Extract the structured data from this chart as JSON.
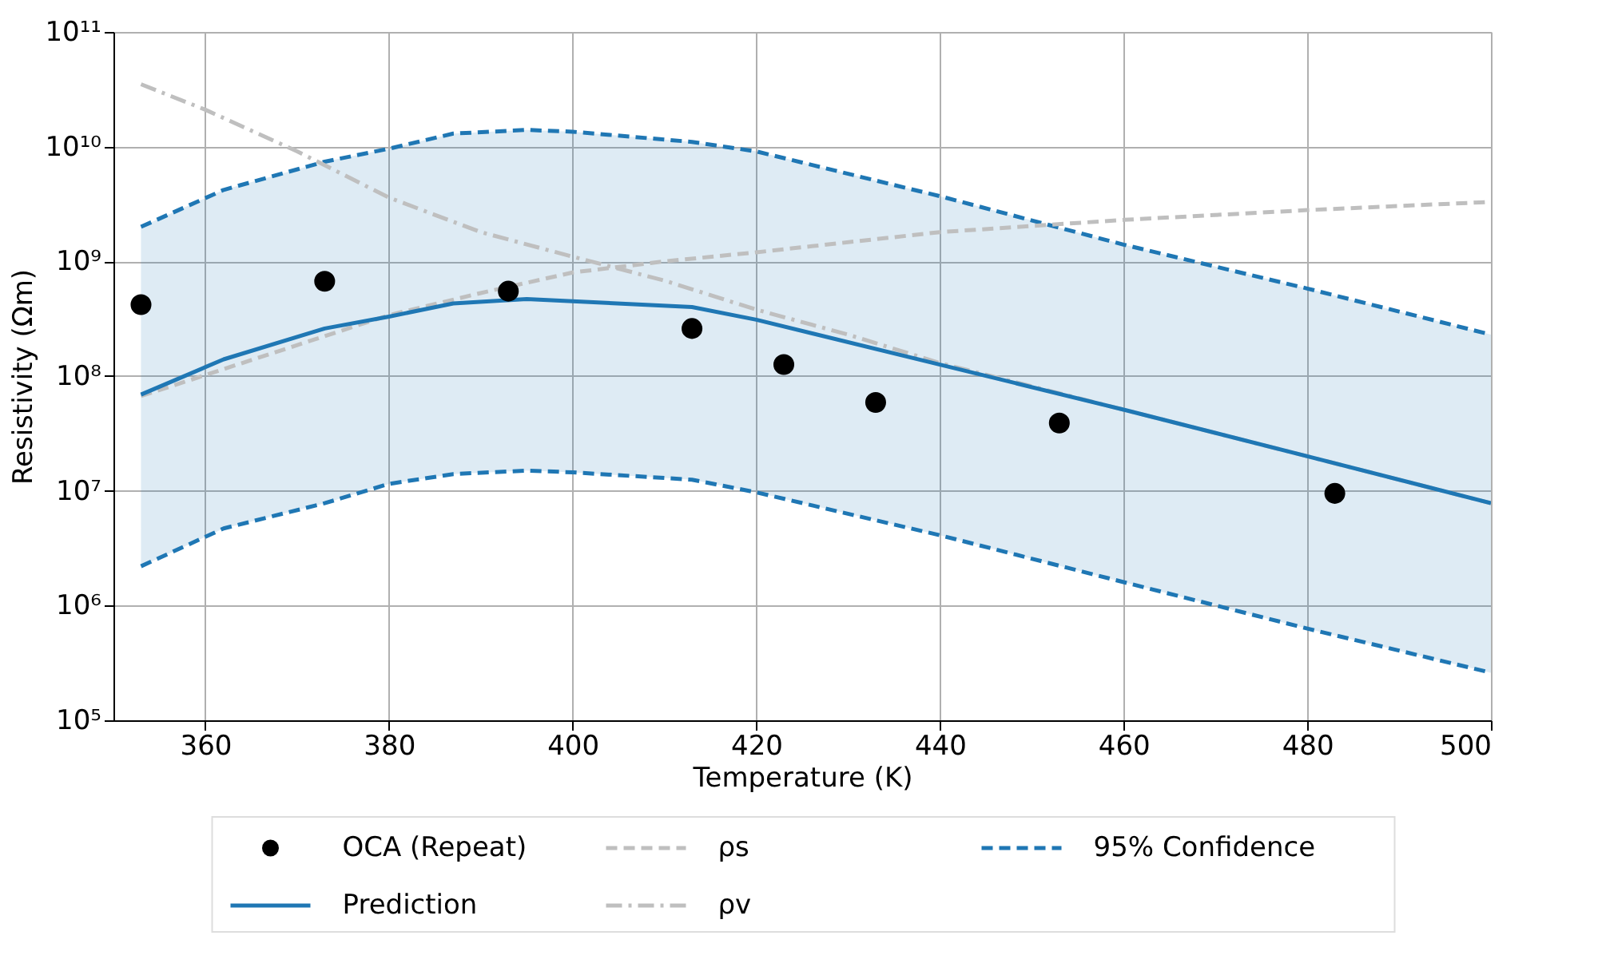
{
  "chart_data": {
    "type": "line",
    "xlabel": "Temperature (K)",
    "ylabel": "Resistivity (Ωm)",
    "xlim": [
      350,
      500
    ],
    "xticks": [
      360,
      380,
      400,
      420,
      440,
      460,
      480,
      500
    ],
    "ylim": [
      100000,
      100000000000
    ],
    "log": true,
    "yticks": [
      {
        "value": 100000,
        "label": "10⁵"
      },
      {
        "value": 1000000,
        "label": "10⁶"
      },
      {
        "value": 10000000,
        "label": "10⁷"
      },
      {
        "value": 100000000,
        "label": "10⁸"
      },
      {
        "value": 1000000000,
        "label": "10⁹"
      },
      {
        "value": 10000000000,
        "label": "10¹⁰"
      },
      {
        "value": 100000000000,
        "label": "10¹¹"
      }
    ],
    "grid": true,
    "legend": "bottom",
    "series": [
      {
        "name": "OCA (Repeat)",
        "type": "scatter",
        "marker": "circle",
        "color": "#000000",
        "x": [
          353,
          373,
          393,
          413,
          423,
          433,
          453,
          483
        ],
        "values": [
          420000000,
          670000000,
          550000000,
          260000000,
          126000000,
          59000000,
          39000000,
          9500000
        ]
      },
      {
        "name": "Prediction",
        "type": "line",
        "line_style": "solid",
        "color": "#1f77b4",
        "x": [
          353,
          362,
          373,
          380,
          387,
          395,
          400,
          413,
          420,
          440,
          460,
          480,
          500
        ],
        "values": [
          69000000,
          140000000,
          260000000,
          330000000,
          430000000,
          470000000,
          450000000,
          400000000,
          310000000,
          126000000,
          51000000,
          20000000,
          7800000
        ],
        "lower": [
          2200000,
          4700000,
          7800000,
          11500000,
          14000000,
          15000000,
          14500000,
          12500000,
          9700000,
          4100000,
          1600000,
          630000,
          260000
        ],
        "upper": [
          2000000000,
          4200000000,
          7400000000,
          9600000000,
          13000000000,
          14000000000,
          13500000000,
          11000000000,
          9100000000,
          3700000000,
          1400000000,
          580000000,
          230000000
        ]
      },
      {
        "name": "ρs",
        "type": "line",
        "line_style": "dashed",
        "color": "#bfbfbf",
        "x": [
          353,
          380,
          390,
          400,
          410,
          420,
          440,
          460,
          480,
          500
        ],
        "values": [
          67000000,
          340000000,
          530000000,
          800000000,
          1000000000,
          1200000000,
          1800000000,
          2300000000,
          2800000000,
          3300000000
        ]
      },
      {
        "name": "ρv",
        "type": "line",
        "line_style": "dashdot",
        "color": "#bfbfbf",
        "x": [
          353,
          360,
          370,
          380,
          390,
          400,
          410,
          420,
          430,
          440,
          460,
          480,
          500
        ],
        "values": [
          35000000000,
          21000000000,
          9100000000,
          3600000000,
          1800000000,
          1100000000,
          680000000,
          380000000,
          230000000,
          130000000,
          51000000,
          20000000,
          7800000
        ]
      },
      {
        "name": "95% Confidence",
        "type": "line",
        "line_style": "dashed",
        "color": "#1f77b4",
        "x": [
          353,
          362,
          373,
          380,
          387,
          395,
          400,
          413,
          420,
          440,
          460,
          480,
          500
        ],
        "values": [
          2000000000,
          4200000000,
          7400000000,
          9600000000,
          13000000000,
          14000000000,
          13500000000,
          11000000000,
          9100000000,
          3700000000,
          1400000000,
          580000000,
          230000000
        ]
      },
      {
        "type": "line",
        "line_style": "dashed",
        "color": "#1f77b4",
        "x": [
          353,
          362,
          373,
          380,
          387,
          395,
          400,
          413,
          420,
          440,
          460,
          480,
          500
        ],
        "values": [
          2200000,
          4700000,
          7800000,
          11500000,
          14000000,
          15000000,
          14500000,
          12500000,
          9700000,
          4100000,
          1600000,
          630000,
          260000
        ]
      }
    ]
  }
}
